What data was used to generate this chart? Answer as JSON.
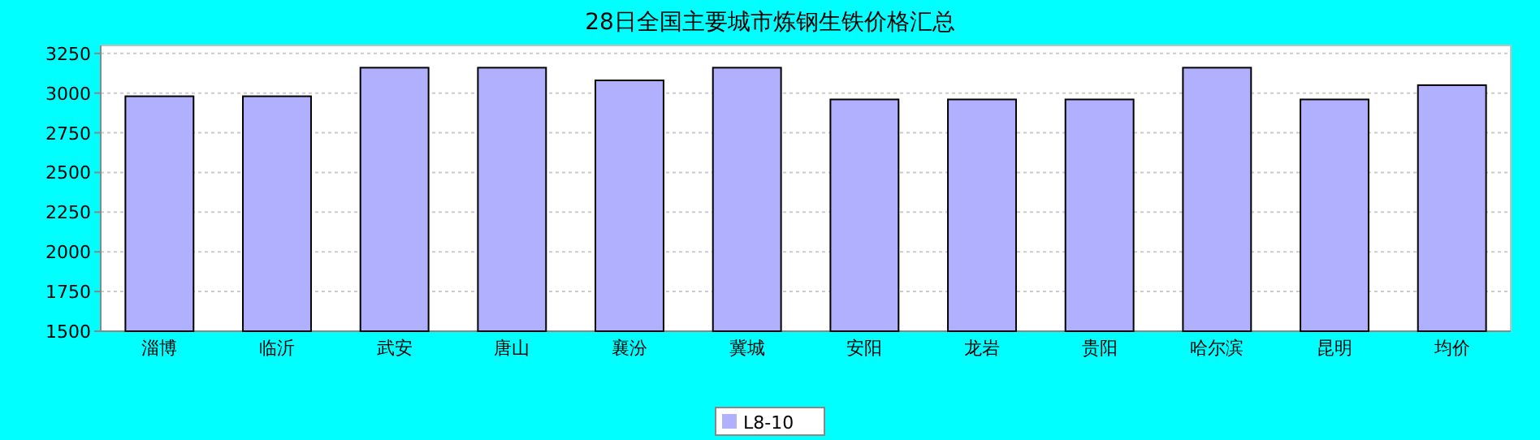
{
  "chart_data": {
    "type": "bar",
    "title": "28日全国主要城市炼钢生铁价格汇总",
    "categories": [
      "淄博",
      "临沂",
      "武安",
      "唐山",
      "襄汾",
      "冀城",
      "安阳",
      "龙岩",
      "贵阳",
      "哈尔滨",
      "昆明",
      "均价"
    ],
    "series": [
      {
        "name": "L8-10",
        "color": "#b0b0ff",
        "values": [
          2980,
          2980,
          3160,
          3160,
          3080,
          3160,
          2960,
          2960,
          2960,
          3160,
          2960,
          3050
        ]
      }
    ],
    "ylim": [
      1500,
      3300
    ],
    "yticks": [
      1500,
      1750,
      2000,
      2250,
      2500,
      2750,
      3000,
      3250
    ],
    "grid": "y",
    "legend": "bottom"
  }
}
